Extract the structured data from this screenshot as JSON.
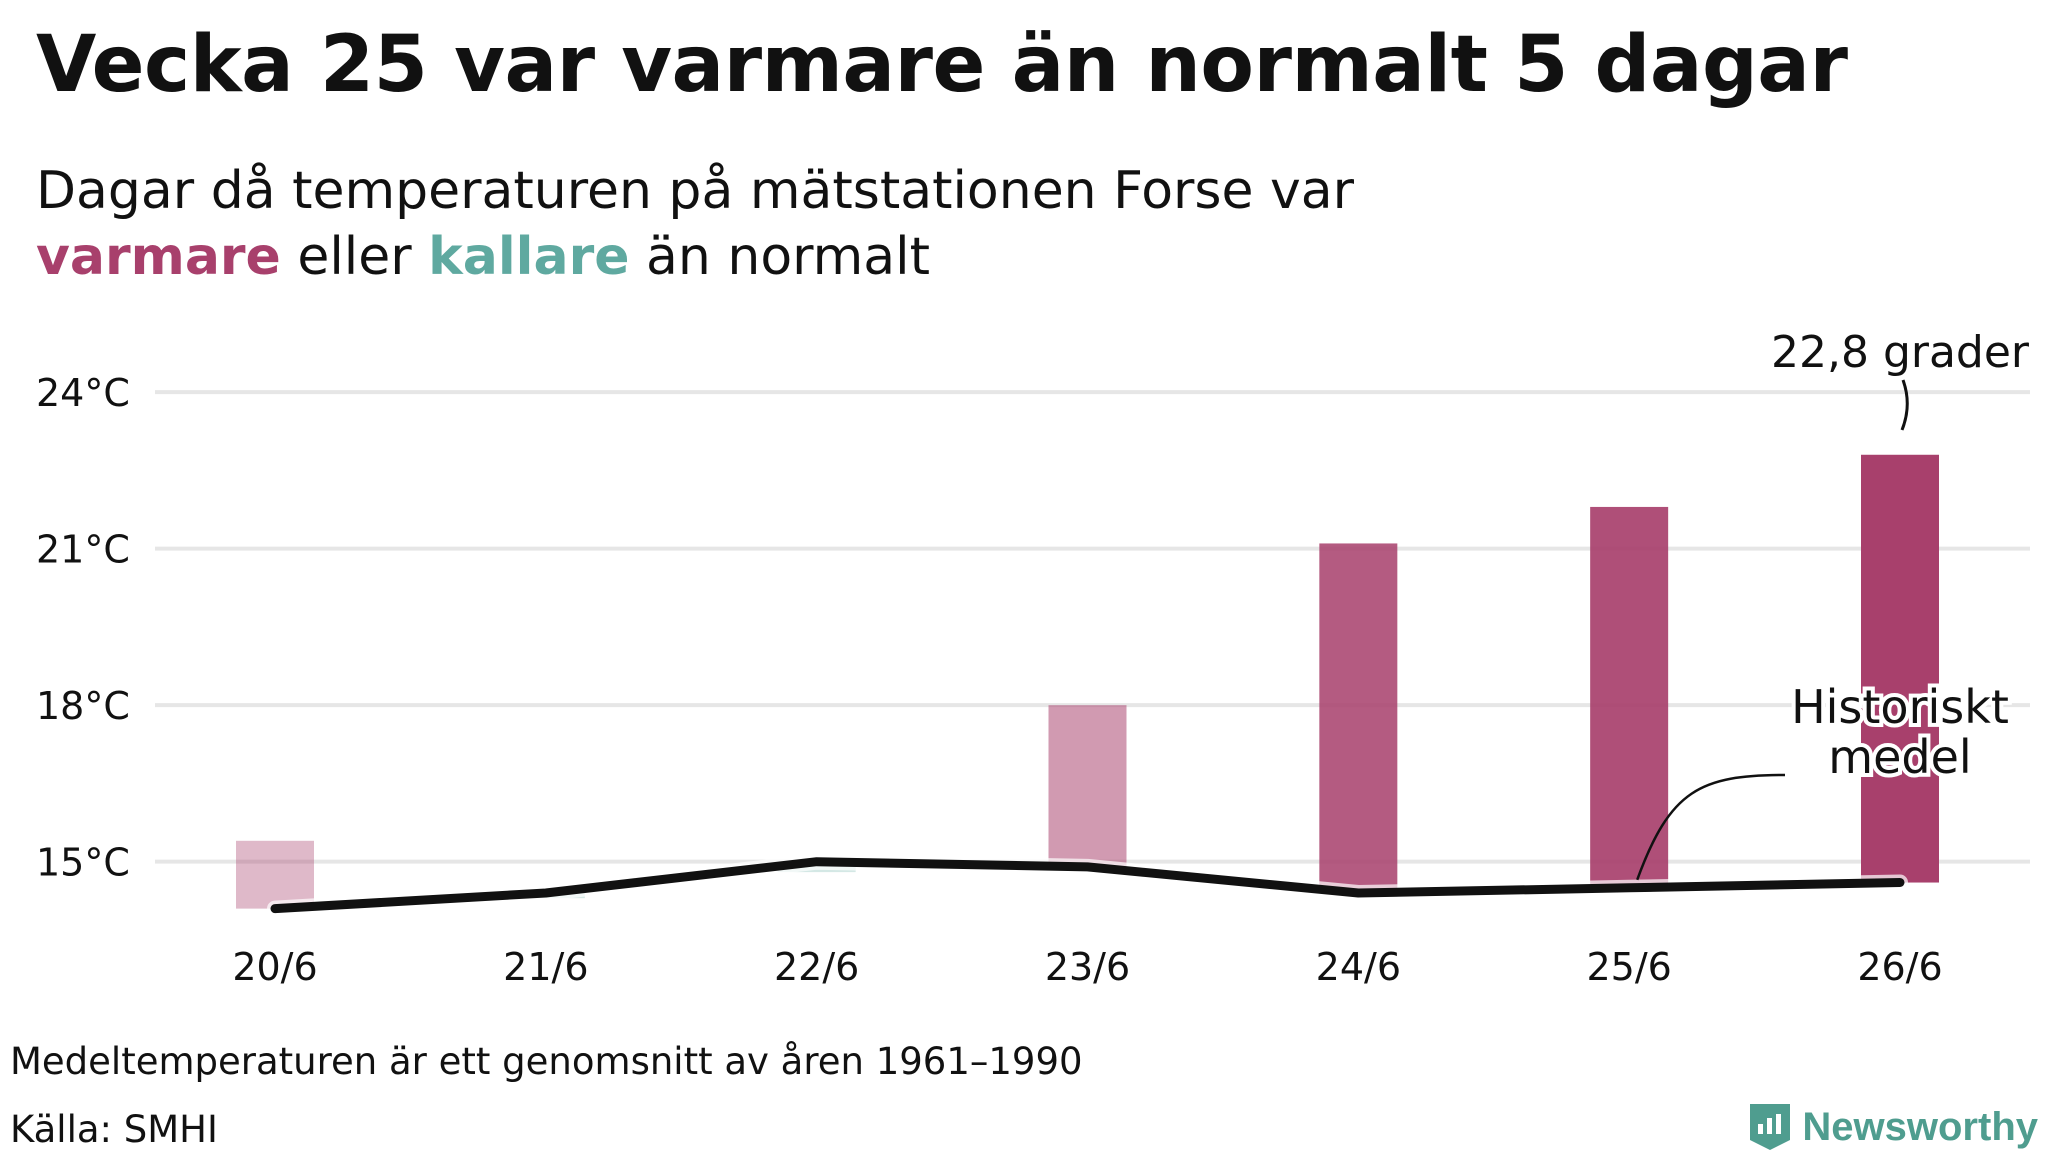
{
  "header": {
    "title": "Vecka 25 var varmare än normalt 5 dagar",
    "subtitle_line1": "Dagar då temperaturen på mätstationen Forse var",
    "subtitle_warm": "varmare",
    "subtitle_mid": "eller",
    "subtitle_cold": "kallare",
    "subtitle_end": "än normalt"
  },
  "colors": {
    "warm": "#a8406c",
    "cold": "#5fa9a0",
    "line": "#111111",
    "grid": "#e6e6e6"
  },
  "chart_data": {
    "type": "bar",
    "categories": [
      "20/6",
      "21/6",
      "22/6",
      "23/6",
      "24/6",
      "25/6",
      "26/6"
    ],
    "series": [
      {
        "values": [
          15.4,
          14.3,
          14.8,
          18.0,
          21.1,
          21.8,
          22.8
        ]
      },
      {
        "name": "Historiskt medel",
        "values": [
          14.1,
          14.4,
          15.0,
          14.9,
          14.4,
          14.5,
          14.6
        ]
      }
    ],
    "ylim": [
      13,
      25
    ],
    "yticks": [
      15,
      18,
      21,
      24
    ],
    "ytick_labels": [
      "15°C",
      "18°C",
      "21°C",
      "24°C"
    ],
    "annotations": {
      "max_label": "22,8 grader",
      "mean_label_line1": "Historiskt",
      "mean_label_line2": "medel"
    },
    "grid": true,
    "legend": "none"
  },
  "footer": {
    "note": "Medeltemperaturen är ett genomsnitt av åren 1961–1990",
    "source": "Källa: SMHI",
    "brand": "Newsworthy",
    "brand_icon": "newsworthy-logo-icon"
  }
}
